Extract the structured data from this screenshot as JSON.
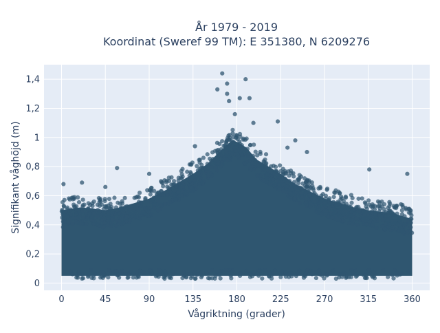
{
  "chart_data": {
    "type": "scatter",
    "title_line1": "År 1979 - 2019",
    "title_line2": "Koordinat (Sweref 99 TM): E 351380, N 6209276",
    "xlabel": "Vågriktning (grader)",
    "ylabel": "Signifikant våghöjd (m)",
    "xlim": [
      -18,
      378
    ],
    "ylim": [
      -0.05,
      1.5
    ],
    "xticks": [
      0,
      45,
      90,
      135,
      180,
      225,
      270,
      315,
      360
    ],
    "xtick_labels": [
      "0",
      "45",
      "90",
      "135",
      "180",
      "225",
      "270",
      "315",
      "360"
    ],
    "yticks": [
      0,
      0.2,
      0.4,
      0.6,
      0.8,
      1.0,
      1.2,
      1.4
    ],
    "ytick_labels": [
      "0",
      "0,2",
      "0,4",
      "0,6",
      "0,8",
      "1",
      "1,2",
      "1,4"
    ],
    "grid": true,
    "marker_color": "#2f5670",
    "plot_bg": "#e5ecf6",
    "upper_envelope": {
      "x": [
        0,
        20,
        45,
        60,
        90,
        110,
        135,
        150,
        165,
        175,
        180,
        190,
        200,
        225,
        240,
        270,
        300,
        315,
        340,
        360
      ],
      "y": [
        0.5,
        0.52,
        0.5,
        0.52,
        0.58,
        0.65,
        0.75,
        0.82,
        0.92,
        0.98,
        0.97,
        0.93,
        0.85,
        0.75,
        0.68,
        0.58,
        0.52,
        0.5,
        0.48,
        0.44
      ]
    },
    "outliers": [
      {
        "x": 165,
        "y": 1.44
      },
      {
        "x": 170,
        "y": 1.37
      },
      {
        "x": 170,
        "y": 1.3
      },
      {
        "x": 160,
        "y": 1.33
      },
      {
        "x": 189,
        "y": 1.4
      },
      {
        "x": 183,
        "y": 1.27
      },
      {
        "x": 193,
        "y": 1.27
      },
      {
        "x": 178,
        "y": 1.16
      },
      {
        "x": 172,
        "y": 1.25
      },
      {
        "x": 197,
        "y": 1.1
      },
      {
        "x": 222,
        "y": 1.11
      },
      {
        "x": 137,
        "y": 0.94
      },
      {
        "x": 57,
        "y": 0.79
      },
      {
        "x": 316,
        "y": 0.78
      },
      {
        "x": 2,
        "y": 0.68
      },
      {
        "x": 90,
        "y": 0.75
      },
      {
        "x": 252,
        "y": 0.9
      },
      {
        "x": 240,
        "y": 0.98
      },
      {
        "x": 355,
        "y": 0.75
      },
      {
        "x": 21,
        "y": 0.69
      },
      {
        "x": 232,
        "y": 0.93
      },
      {
        "x": 45,
        "y": 0.66
      }
    ]
  }
}
